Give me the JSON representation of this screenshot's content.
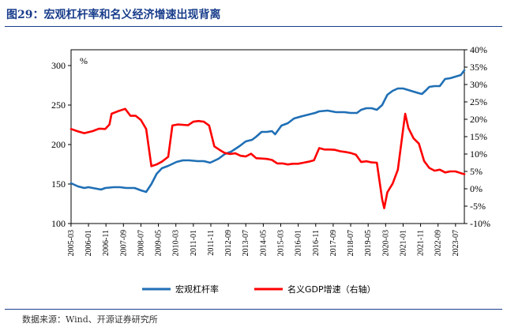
{
  "title": "图29：宏观杠杆率和名义经济增速出现背离",
  "source": "数据来源：Wind、开源证券研究所",
  "colors": {
    "title": "#1a3e8c",
    "series_blue": "#1f6fb5",
    "series_red": "#ff0000"
  },
  "chart_data": {
    "type": "line",
    "unit_label": "%",
    "x_ticks": [
      "2005-03",
      "2006-01",
      "2006-11",
      "2007-09",
      "2008-07",
      "2009-05",
      "2010-03",
      "2011-01",
      "2011-11",
      "2012-09",
      "2013-07",
      "2014-05",
      "2015-03",
      "2016-01",
      "2016-11",
      "2017-09",
      "2018-07",
      "2019-05",
      "2020-03",
      "2021-01",
      "2021-11",
      "2022-09",
      "2023-07"
    ],
    "y_left": {
      "ticks": [
        100,
        150,
        200,
        250,
        300
      ],
      "range": [
        100,
        320
      ]
    },
    "y_right": {
      "ticks": [
        "40%",
        "35%",
        "30%",
        "25%",
        "20%",
        "15%",
        "10%",
        "5%",
        "0%",
        "-5%",
        "-10%"
      ],
      "range": [
        -10,
        40
      ]
    },
    "legend_position": "bottom",
    "series": [
      {
        "name": "宏观杠杆率",
        "axis": "left",
        "points": [
          [
            2005.17,
            151
          ],
          [
            2005.5,
            147
          ],
          [
            2005.8,
            145
          ],
          [
            2006.0,
            146
          ],
          [
            2006.4,
            144
          ],
          [
            2006.6,
            143
          ],
          [
            2006.8,
            145
          ],
          [
            2007.2,
            146
          ],
          [
            2007.5,
            146
          ],
          [
            2007.8,
            145
          ],
          [
            2008.2,
            145
          ],
          [
            2008.5,
            142
          ],
          [
            2008.75,
            140
          ],
          [
            2009.0,
            150
          ],
          [
            2009.25,
            163
          ],
          [
            2009.5,
            170
          ],
          [
            2009.8,
            173
          ],
          [
            2010.2,
            178
          ],
          [
            2010.5,
            180
          ],
          [
            2010.8,
            180
          ],
          [
            2011.2,
            179
          ],
          [
            2011.5,
            179
          ],
          [
            2011.8,
            177
          ],
          [
            2012.2,
            182
          ],
          [
            2012.5,
            188
          ],
          [
            2012.8,
            191
          ],
          [
            2013.2,
            198
          ],
          [
            2013.5,
            204
          ],
          [
            2013.8,
            206
          ],
          [
            2014.0,
            210
          ],
          [
            2014.25,
            216
          ],
          [
            2014.5,
            216
          ],
          [
            2014.75,
            217
          ],
          [
            2014.9,
            213
          ],
          [
            2015.2,
            224
          ],
          [
            2015.5,
            227
          ],
          [
            2015.8,
            233
          ],
          [
            2016.2,
            236
          ],
          [
            2016.5,
            238
          ],
          [
            2016.8,
            240
          ],
          [
            2017.0,
            242
          ],
          [
            2017.4,
            243
          ],
          [
            2017.8,
            241
          ],
          [
            2018.2,
            241
          ],
          [
            2018.5,
            240
          ],
          [
            2018.8,
            240
          ],
          [
            2019.0,
            244
          ],
          [
            2019.25,
            246
          ],
          [
            2019.5,
            246
          ],
          [
            2019.75,
            244
          ],
          [
            2020.0,
            250
          ],
          [
            2020.25,
            263
          ],
          [
            2020.5,
            268
          ],
          [
            2020.75,
            271
          ],
          [
            2021.0,
            271
          ],
          [
            2021.25,
            269
          ],
          [
            2021.5,
            267
          ],
          [
            2021.75,
            265
          ],
          [
            2021.9,
            264
          ],
          [
            2022.1,
            269
          ],
          [
            2022.25,
            273
          ],
          [
            2022.5,
            274
          ],
          [
            2022.75,
            274
          ],
          [
            2023.0,
            283
          ],
          [
            2023.25,
            284
          ],
          [
            2023.5,
            286
          ],
          [
            2023.75,
            288
          ],
          [
            2023.92,
            294
          ]
        ]
      },
      {
        "name": "名义GDP增速（右轴）",
        "axis": "right",
        "points": [
          [
            2005.17,
            17.2
          ],
          [
            2005.5,
            16.5
          ],
          [
            2005.8,
            16.0
          ],
          [
            2006.2,
            16.6
          ],
          [
            2006.5,
            17.3
          ],
          [
            2006.8,
            17.2
          ],
          [
            2007.0,
            18.5
          ],
          [
            2007.1,
            21.6
          ],
          [
            2007.4,
            22.3
          ],
          [
            2007.75,
            23.0
          ],
          [
            2008.0,
            21.0
          ],
          [
            2008.25,
            21.0
          ],
          [
            2008.5,
            19.8
          ],
          [
            2008.75,
            17.2
          ],
          [
            2009.0,
            6.5
          ],
          [
            2009.25,
            7.0
          ],
          [
            2009.5,
            7.8
          ],
          [
            2009.8,
            9.2
          ],
          [
            2010.0,
            18.2
          ],
          [
            2010.25,
            18.5
          ],
          [
            2010.75,
            18.3
          ],
          [
            2011.0,
            19.3
          ],
          [
            2011.25,
            19.5
          ],
          [
            2011.5,
            19.3
          ],
          [
            2011.75,
            18.2
          ],
          [
            2012.0,
            12.2
          ],
          [
            2012.25,
            11.2
          ],
          [
            2012.5,
            10.3
          ],
          [
            2012.75,
            10.0
          ],
          [
            2013.0,
            10.2
          ],
          [
            2013.25,
            9.5
          ],
          [
            2013.5,
            9.3
          ],
          [
            2013.75,
            10.1
          ],
          [
            2014.0,
            8.8
          ],
          [
            2014.25,
            8.7
          ],
          [
            2014.5,
            8.6
          ],
          [
            2014.75,
            8.3
          ],
          [
            2015.0,
            7.3
          ],
          [
            2015.25,
            7.3
          ],
          [
            2015.5,
            7.0
          ],
          [
            2015.75,
            7.2
          ],
          [
            2016.0,
            7.2
          ],
          [
            2016.25,
            7.5
          ],
          [
            2016.5,
            7.8
          ],
          [
            2016.75,
            8.2
          ],
          [
            2017.0,
            11.7
          ],
          [
            2017.25,
            11.3
          ],
          [
            2017.5,
            11.3
          ],
          [
            2017.75,
            11.2
          ],
          [
            2018.0,
            10.8
          ],
          [
            2018.25,
            10.6
          ],
          [
            2018.5,
            10.3
          ],
          [
            2018.75,
            9.8
          ],
          [
            2019.0,
            7.7
          ],
          [
            2019.25,
            7.9
          ],
          [
            2019.5,
            7.6
          ],
          [
            2019.75,
            7.5
          ],
          [
            2020.0,
            -3.0
          ],
          [
            2020.1,
            -5.6
          ],
          [
            2020.25,
            -1.0
          ],
          [
            2020.5,
            1.5
          ],
          [
            2020.75,
            5.5
          ],
          [
            2021.0,
            17.0
          ],
          [
            2021.1,
            21.6
          ],
          [
            2021.25,
            17.5
          ],
          [
            2021.5,
            14.5
          ],
          [
            2021.75,
            13.0
          ],
          [
            2022.0,
            8.0
          ],
          [
            2022.25,
            6.0
          ],
          [
            2022.5,
            5.2
          ],
          [
            2022.75,
            5.5
          ],
          [
            2023.0,
            4.7
          ],
          [
            2023.25,
            5.0
          ],
          [
            2023.5,
            5.0
          ],
          [
            2023.75,
            4.5
          ],
          [
            2023.92,
            4.2
          ]
        ]
      }
    ]
  }
}
